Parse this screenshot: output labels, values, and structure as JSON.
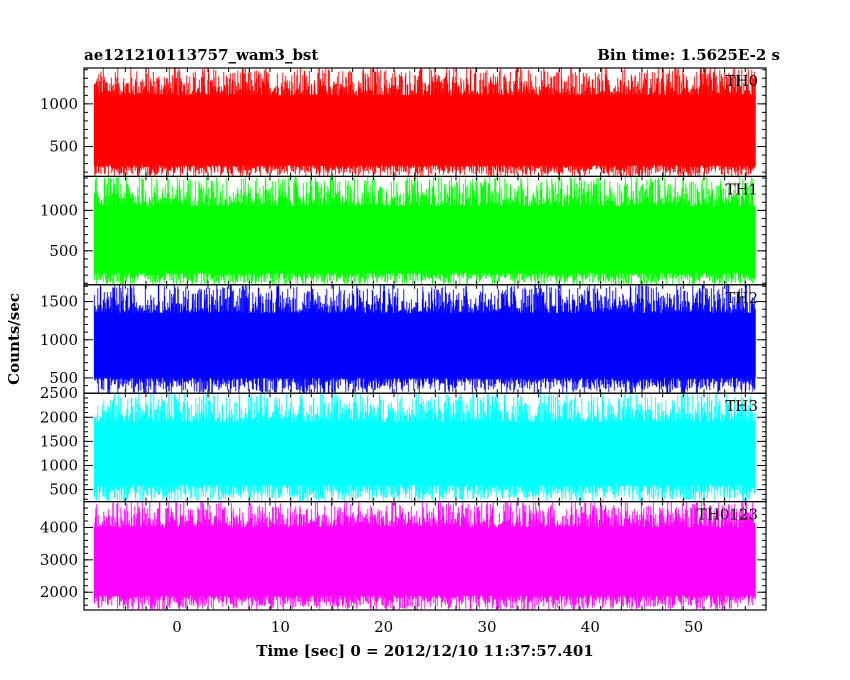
{
  "header": {
    "title": "ae121210113757_wam3_bst",
    "bin_time": "Bin time: 1.5625E-2 s"
  },
  "chart_data": {
    "type": "line",
    "ylabel": "Counts/sec",
    "xlabel": "Time [sec] 0 = 2012/12/10 11:37:57.401",
    "xlim": [
      -9,
      57
    ],
    "data_x_range": [
      -8,
      56
    ],
    "x_ticks": [
      0,
      10,
      20,
      30,
      40,
      50
    ],
    "x_tick_labels": [
      "0",
      "10",
      "20",
      "30",
      "40",
      "50"
    ],
    "panels": [
      {
        "name": "TH0",
        "color": "#ff0000",
        "ylim": [
          150,
          1420
        ],
        "y_ticks": [
          500,
          1000
        ],
        "y_tick_labels": [
          "500",
          "1000"
        ],
        "baseline": 280,
        "typical_high": 1100,
        "noise_range": [
          150,
          1420
        ]
      },
      {
        "name": "TH1",
        "color": "#00ff00",
        "ylim": [
          80,
          1420
        ],
        "y_ticks": [
          500,
          1000
        ],
        "y_tick_labels": [
          "500",
          "1000"
        ],
        "baseline": 230,
        "typical_high": 1050,
        "noise_range": [
          80,
          1420
        ]
      },
      {
        "name": "TH2",
        "color": "#0000ff",
        "ylim": [
          300,
          1720
        ],
        "y_ticks": [
          500,
          1000,
          1500
        ],
        "y_tick_labels": [
          "500",
          "1000",
          "1500"
        ],
        "baseline": 500,
        "typical_high": 1350,
        "noise_range": [
          300,
          1720
        ]
      },
      {
        "name": "TH3",
        "color": "#00ffff",
        "ylim": [
          250,
          2500
        ],
        "y_ticks": [
          500,
          1000,
          1500,
          2000,
          2500
        ],
        "y_tick_labels": [
          "500",
          "1000",
          "1500",
          "2000",
          "2500"
        ],
        "baseline": 600,
        "typical_high": 1900,
        "noise_range": [
          250,
          2500
        ]
      },
      {
        "name": "TH0123",
        "color": "#ff00ff",
        "ylim": [
          1450,
          4800
        ],
        "y_ticks": [
          2000,
          3000,
          4000
        ],
        "y_tick_labels": [
          "2000",
          "3000",
          "4000"
        ],
        "baseline": 1900,
        "typical_high": 4000,
        "noise_range": [
          1450,
          4800
        ]
      }
    ]
  }
}
